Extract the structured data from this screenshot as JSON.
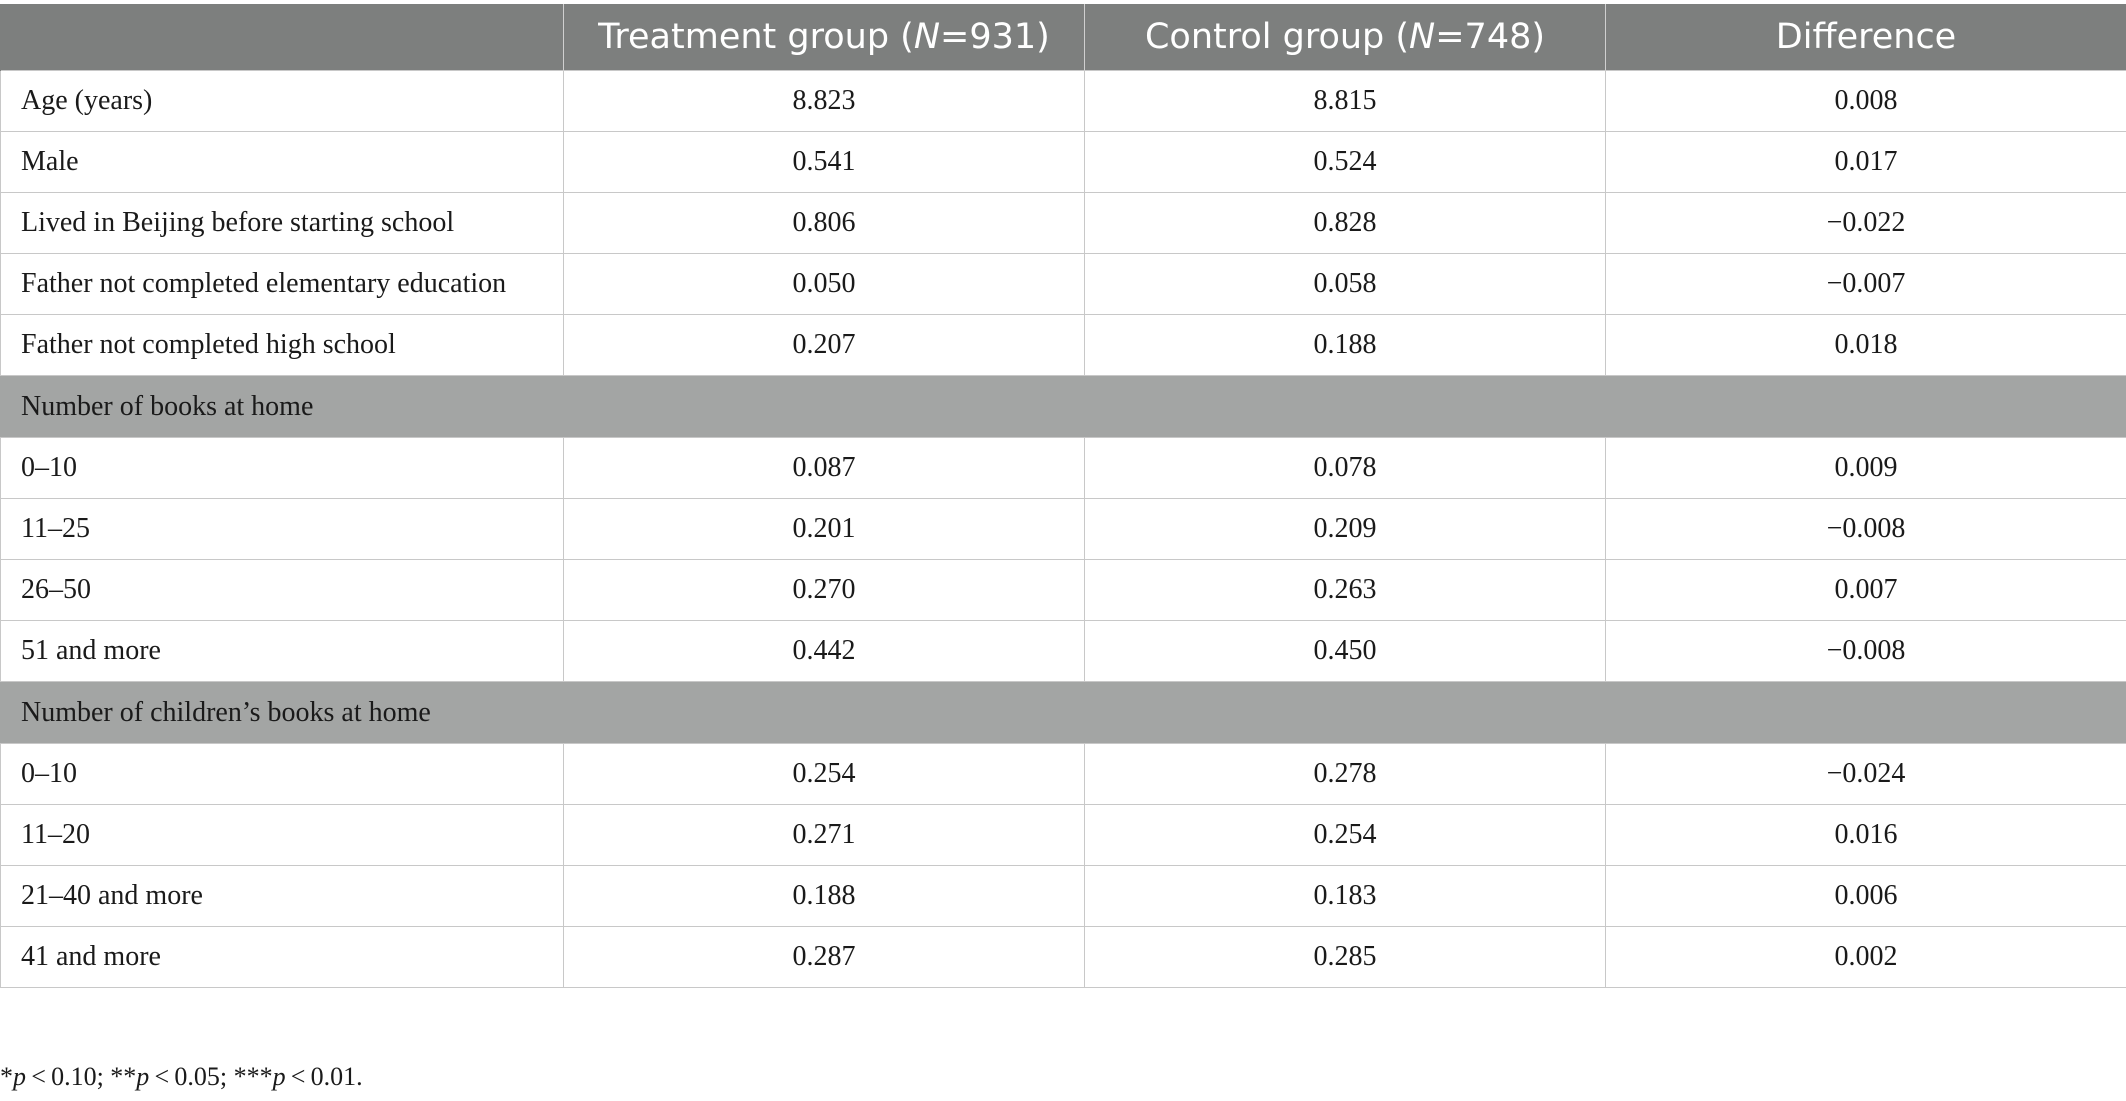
{
  "table": {
    "columns": {
      "label": "",
      "treatment_prefix": "Treatment group (",
      "treatment_n_symbol": "N",
      "treatment_suffix": "=931)",
      "control_prefix": "Control group (",
      "control_n_symbol": "N",
      "control_suffix": "=748)",
      "difference": "Difference"
    },
    "rows": [
      {
        "label": "Age (years)",
        "treatment": "8.823",
        "control": "8.815",
        "difference": "0.008"
      },
      {
        "label": "Male",
        "treatment": "0.541",
        "control": "0.524",
        "difference": "0.017"
      },
      {
        "label": "Lived in Beijing before starting school",
        "treatment": "0.806",
        "control": "0.828",
        "difference": "−0.022"
      },
      {
        "label": "Father not completed elementary education",
        "treatment": "0.050",
        "control": "0.058",
        "difference": "−0.007"
      },
      {
        "label": "Father not completed high school",
        "treatment": "0.207",
        "control": "0.188",
        "difference": "0.018"
      }
    ],
    "section_books": {
      "title": "Number of books at home",
      "rows": [
        {
          "label": "0–10",
          "treatment": "0.087",
          "control": "0.078",
          "difference": "0.009"
        },
        {
          "label": "11–25",
          "treatment": "0.201",
          "control": "0.209",
          "difference": "−0.008"
        },
        {
          "label": "26–50",
          "treatment": "0.270",
          "control": "0.263",
          "difference": "0.007"
        },
        {
          "label": "51 and more",
          "treatment": "0.442",
          "control": "0.450",
          "difference": "−0.008"
        }
      ]
    },
    "section_children_books": {
      "title": "Number of children’s books at home",
      "rows": [
        {
          "label": "0–10",
          "treatment": "0.254",
          "control": "0.278",
          "difference": "−0.024"
        },
        {
          "label": "11–20",
          "treatment": "0.271",
          "control": "0.254",
          "difference": "0.016"
        },
        {
          "label": "21–40 and more",
          "treatment": "0.188",
          "control": "0.183",
          "difference": "0.006"
        },
        {
          "label": "41 and more",
          "treatment": "0.287",
          "control": "0.285",
          "difference": "0.002"
        }
      ]
    }
  },
  "footnote": {
    "star1": "*",
    "p1": "p",
    "t1": " < 0.10; **",
    "p2": "p",
    "t2": " < 0.05; ***",
    "p3": "p",
    "t3": " < 0.01."
  },
  "colors": {
    "header_bg": "#7d7f7e",
    "section_bg": "#a3a5a4",
    "grid": "#c8c8c8"
  }
}
